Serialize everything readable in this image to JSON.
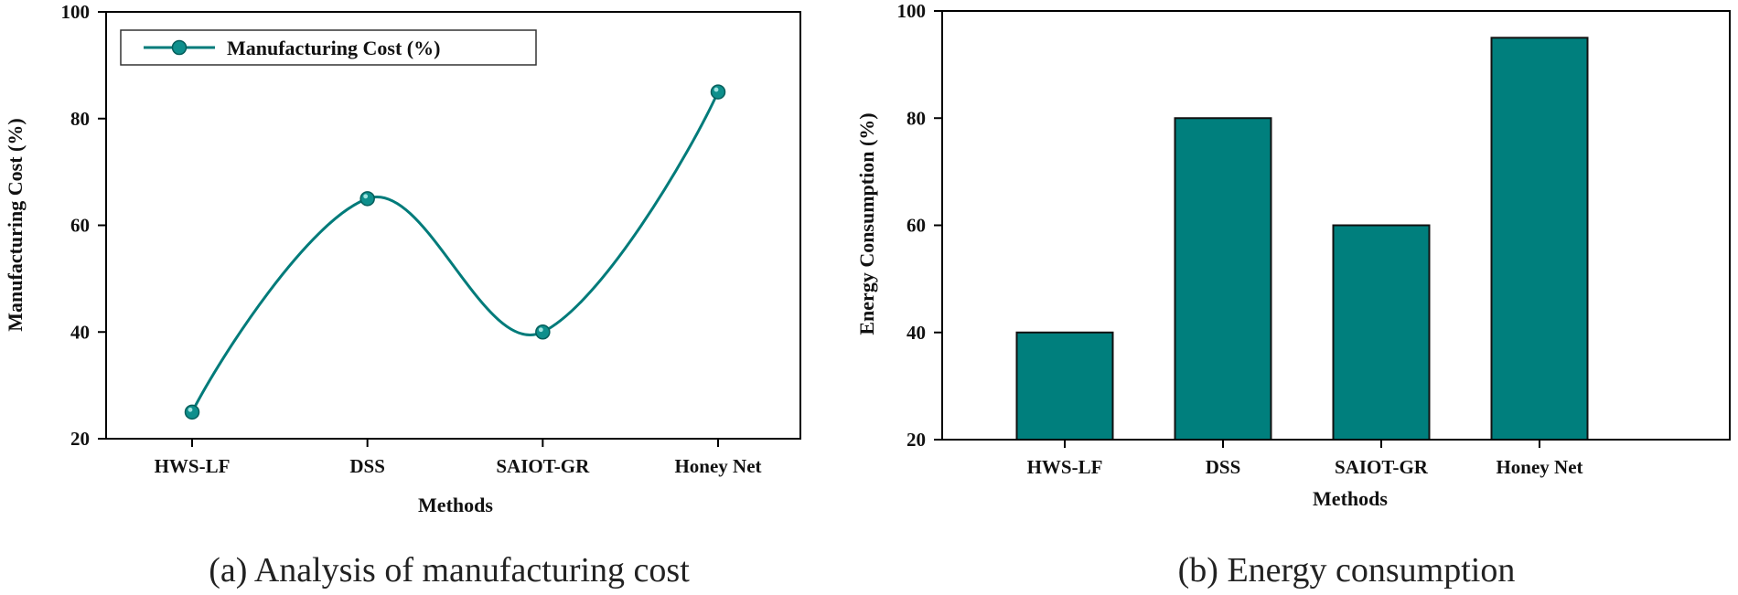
{
  "colors": {
    "series": "#007B7A",
    "bar_fill": "#007F7D",
    "bar_edge": "#111111",
    "axis": "#000000"
  },
  "chart_data": [
    {
      "type": "line",
      "categories": [
        "HWS-LF",
        "DSS",
        "SAIOT-GR",
        "Honey Net"
      ],
      "series": [
        {
          "name": "Manufacturing Cost (%)",
          "values": [
            25,
            65,
            40,
            85
          ]
        }
      ],
      "xlabel": "Methods",
      "ylabel": "Manufacturing Cost (%)",
      "ylim": [
        20,
        100
      ],
      "yticks": [
        20,
        40,
        60,
        80,
        100
      ],
      "legend": "top-left",
      "grid": false,
      "caption": "(a) Analysis of manufacturing cost"
    },
    {
      "type": "bar",
      "categories": [
        "HWS-LF",
        "DSS",
        "SAIOT-GR",
        "Honey Net"
      ],
      "values": [
        40,
        80,
        60,
        95
      ],
      "xlabel": "Methods",
      "ylabel": "Energy Consumption (%)",
      "ylim": [
        20,
        100
      ],
      "yticks": [
        20,
        40,
        60,
        80,
        100
      ],
      "grid": false,
      "caption": "(b) Energy consumption"
    }
  ]
}
